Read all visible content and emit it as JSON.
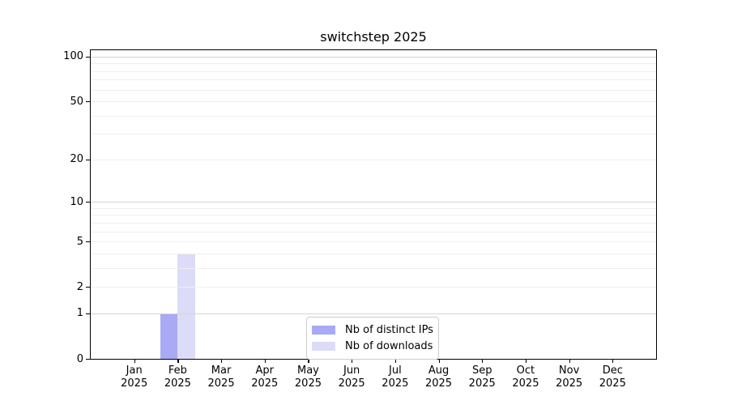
{
  "chart_data": {
    "type": "bar",
    "title": "switchstep 2025",
    "categories": [
      "Jan 2025",
      "Feb 2025",
      "Mar 2025",
      "Apr 2025",
      "May 2025",
      "Jun 2025",
      "Jul 2025",
      "Aug 2025",
      "Sep 2025",
      "Oct 2025",
      "Nov 2025",
      "Dec 2025"
    ],
    "series": [
      {
        "name": "Nb of distinct IPs",
        "color": "#a9a9f5",
        "values": [
          0,
          1,
          0,
          0,
          0,
          0,
          0,
          0,
          0,
          0,
          0,
          0
        ]
      },
      {
        "name": "Nb of downloads",
        "color": "#dcdcf8",
        "values": [
          0,
          4,
          0,
          0,
          0,
          0,
          0,
          0,
          0,
          0,
          0,
          0
        ]
      }
    ],
    "xlabel": "",
    "ylabel": "",
    "yscale": "log1p",
    "y_ticks": [
      0,
      1,
      2,
      5,
      10,
      20,
      50,
      100
    ],
    "ylim": [
      0,
      110
    ],
    "grid": "horizontal-log-minor",
    "legend_position": "bottom-center-inside"
  }
}
